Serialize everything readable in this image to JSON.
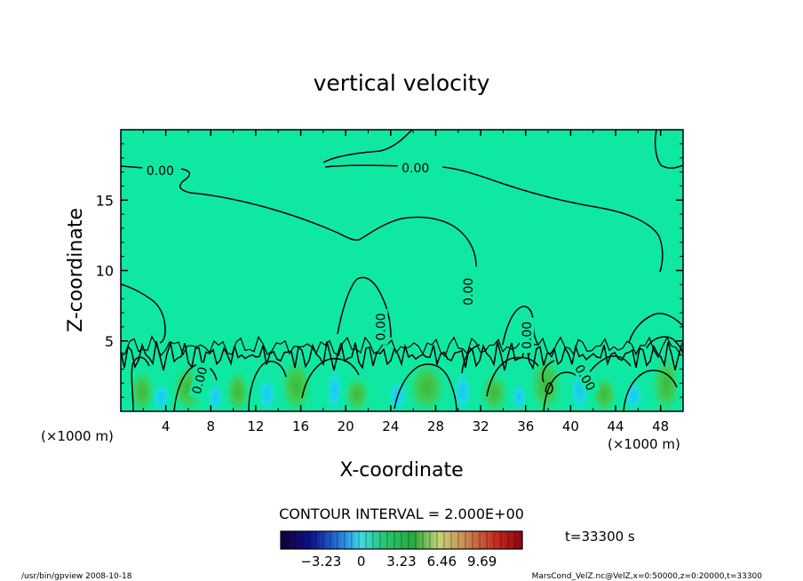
{
  "chart_data": {
    "type": "heatmap",
    "subtype": "filled-contour",
    "title": "vertical velocity",
    "xlabel": "X-coordinate",
    "ylabel": "Z-coordinate",
    "x_unit": "(×1000 m)",
    "y_unit": "(×1000 m)",
    "xlim": [
      0,
      50
    ],
    "ylim": [
      0,
      20
    ],
    "x_ticks": [
      4,
      8,
      12,
      16,
      20,
      24,
      28,
      32,
      36,
      40,
      44,
      48
    ],
    "y_ticks": [
      5,
      10,
      15
    ],
    "contour_interval_text": "CONTOUR INTERVAL = 2.000E+00",
    "contour_labels": [
      {
        "text": "0.00",
        "x": 3.5,
        "z": 17.1,
        "rotate": 0
      },
      {
        "text": "0.00",
        "x": 26.2,
        "z": 17.3,
        "rotate": 0
      },
      {
        "text": "0.00",
        "x": 30.9,
        "z": 8.5,
        "rotate": -90
      },
      {
        "text": "0.00",
        "x": 23.1,
        "z": 6.0,
        "rotate": -90
      },
      {
        "text": "0.00",
        "x": 7.0,
        "z": 2.2,
        "rotate": -75
      },
      {
        "text": "0.00",
        "x": 41.3,
        "z": 2.4,
        "rotate": 60
      },
      {
        "text": "0.00",
        "x": 36.1,
        "z": 5.4,
        "rotate": -90
      }
    ],
    "hot_spots": [
      {
        "x": 1.9,
        "z": 1.4,
        "w": 1.6,
        "value": 4.0
      },
      {
        "x": 6.0,
        "z": 1.6,
        "w": 2.0,
        "value": 3.0
      },
      {
        "x": 10.4,
        "z": 1.4,
        "w": 1.5,
        "value": 2.0
      },
      {
        "x": 15.6,
        "z": 1.8,
        "w": 2.0,
        "value": 5.0
      },
      {
        "x": 21.0,
        "z": 1.2,
        "w": 1.6,
        "value": 1.5
      },
      {
        "x": 27.2,
        "z": 1.7,
        "w": 2.4,
        "value": 4.5
      },
      {
        "x": 33.2,
        "z": 1.3,
        "w": 1.8,
        "value": 1.5
      },
      {
        "x": 37.8,
        "z": 1.9,
        "w": 2.0,
        "value": 5.0
      },
      {
        "x": 43.0,
        "z": 1.2,
        "w": 1.6,
        "value": 1.5
      },
      {
        "x": 48.5,
        "z": 1.9,
        "w": 1.8,
        "value": 5.0
      }
    ],
    "cold_spots": [
      {
        "x": 3.6,
        "z": 1.0,
        "w": 1.0,
        "value": -2.5
      },
      {
        "x": 8.4,
        "z": 1.0,
        "w": 0.9,
        "value": -1.5
      },
      {
        "x": 13.0,
        "z": 1.2,
        "w": 1.0,
        "value": -1.5
      },
      {
        "x": 19.0,
        "z": 1.5,
        "w": 0.9,
        "value": -1.5
      },
      {
        "x": 24.6,
        "z": 1.1,
        "w": 1.0,
        "value": -2.0
      },
      {
        "x": 30.4,
        "z": 1.4,
        "w": 1.0,
        "value": -1.5
      },
      {
        "x": 35.4,
        "z": 1.0,
        "w": 0.9,
        "value": -2.5
      },
      {
        "x": 40.8,
        "z": 1.5,
        "w": 1.0,
        "value": -2.0
      },
      {
        "x": 45.6,
        "z": 1.1,
        "w": 1.0,
        "value": -2.0
      }
    ],
    "colorbar": {
      "range": [
        -6.46,
        12.92
      ],
      "tick_labels": [
        "−3.23",
        "0",
        "3.23",
        "6.46",
        "9.69"
      ],
      "tick_values": [
        -3.23,
        0,
        3.23,
        6.46,
        9.69
      ]
    },
    "time_label": "t=33300 s"
  },
  "footer": {
    "left": "/usr/bin/gpview  2008-10-18",
    "right": "MarsCond_VelZ.nc@VelZ,x=0:50000,z=0:20000,t=33300"
  },
  "colors": {
    "background_field": "#0fe8a2",
    "hot": "#38c84a",
    "cold": "#1fd8ee",
    "contour_line": "#000000"
  }
}
